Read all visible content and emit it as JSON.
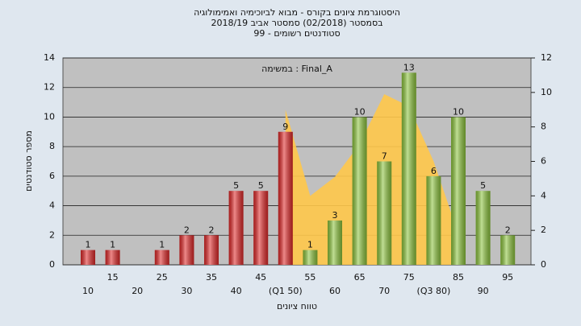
{
  "chart_data": {
    "type": "bar",
    "title": [
      "היסטוגרמת ציונים בקורס - מבוא לביוכימיה ואמימולוגיה",
      "בסמסטר  (02/2018)  סמסטר אביב 2018/19",
      "סטודנטים רשומים - 99"
    ],
    "annotation": "במשימה : Final_A",
    "y_label": "מספר סטודנטים",
    "x_label": "טווח ציונים",
    "categories": [
      "10",
      "15",
      "20",
      "25",
      "30",
      "35",
      "40",
      "45",
      "(Q1 50)",
      "55",
      "60",
      "65",
      "70",
      "75",
      "(Q3 80)",
      "85",
      "90",
      "95"
    ],
    "values": [
      1,
      1,
      null,
      1,
      2,
      2,
      5,
      5,
      9,
      1,
      3,
      10,
      7,
      13,
      6,
      10,
      5,
      2
    ],
    "colors": [
      "#e02828",
      "#e02828",
      null,
      "#e02828",
      "#e02828",
      "#e02828",
      "#e02828",
      "#e02828",
      "#e02828",
      "#8cc43c",
      "#8cc43c",
      "#8cc43c",
      "#8cc43c",
      "#8cc43c",
      "#8cc43c",
      "#8cc43c",
      "#8cc43c",
      "#8cc43c"
    ],
    "curve": {
      "axis": "y2",
      "color": "#ffc84a",
      "values": [
        null,
        null,
        null,
        null,
        null,
        null,
        null,
        null,
        9,
        4,
        5.1,
        7,
        9.9,
        9.2,
        6,
        1.8,
        null,
        null
      ]
    },
    "ylim": [
      0,
      14
    ],
    "yticks": [
      0,
      2,
      4,
      6,
      8,
      10,
      12,
      14
    ],
    "y2lim": [
      0,
      12
    ],
    "y2ticks": [
      0,
      2,
      4,
      6,
      8,
      10,
      12
    ],
    "grid": true
  }
}
